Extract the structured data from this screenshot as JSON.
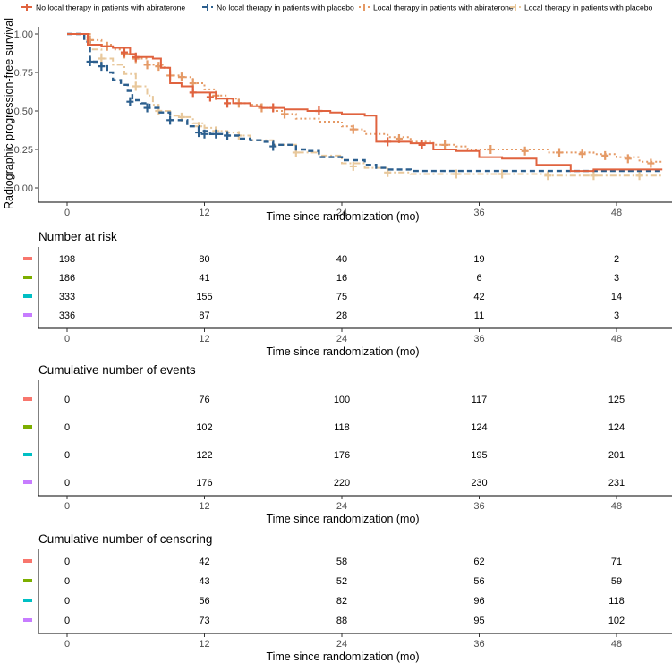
{
  "chart_data": {
    "type": "line",
    "subtype": "kaplan-meier",
    "ylabel": "Radiographic progression-free survival",
    "xlabel": "Time since randomization (mo)",
    "xlim": [
      -4,
      52
    ],
    "ylim": [
      0,
      1
    ],
    "x_ticks": [
      0,
      12,
      24,
      36,
      48
    ],
    "y_ticks": [
      "0.00",
      "0.25",
      "0.50",
      "0.75",
      "1.00"
    ],
    "grid": false,
    "legend_position": "top",
    "series": [
      {
        "name": "No local therapy in patients with abiraterone",
        "color": "#e0633f",
        "dash": "solid",
        "points": [
          [
            0,
            1.0
          ],
          [
            1.3,
            1.0
          ],
          [
            1.8,
            0.93
          ],
          [
            3,
            0.92
          ],
          [
            4,
            0.91
          ],
          [
            5.5,
            0.87
          ],
          [
            6,
            0.85
          ],
          [
            7.5,
            0.84
          ],
          [
            8.2,
            0.78
          ],
          [
            9,
            0.68
          ],
          [
            10,
            0.66
          ],
          [
            11,
            0.62
          ],
          [
            13,
            0.58
          ],
          [
            14.5,
            0.55
          ],
          [
            16,
            0.53
          ],
          [
            17,
            0.52
          ],
          [
            19,
            0.51
          ],
          [
            21,
            0.5
          ],
          [
            23,
            0.49
          ],
          [
            24,
            0.48
          ],
          [
            26,
            0.47
          ],
          [
            27,
            0.3
          ],
          [
            30,
            0.29
          ],
          [
            32,
            0.25
          ],
          [
            34,
            0.24
          ],
          [
            36,
            0.2
          ],
          [
            38,
            0.19
          ],
          [
            41,
            0.15
          ],
          [
            44,
            0.11
          ],
          [
            46,
            0.12
          ],
          [
            52,
            0.12
          ]
        ],
        "censor": [
          [
            5,
            0.88
          ],
          [
            6,
            0.85
          ],
          [
            11,
            0.62
          ],
          [
            12.5,
            0.59
          ],
          [
            14,
            0.55
          ],
          [
            18,
            0.52
          ],
          [
            22,
            0.5
          ],
          [
            28,
            0.3
          ],
          [
            31,
            0.28
          ]
        ]
      },
      {
        "name": "No local therapy in patients with placebo",
        "color": "#2c5f8e",
        "dash": "dashed",
        "points": [
          [
            0,
            1.0
          ],
          [
            1.5,
            0.95
          ],
          [
            2,
            0.82
          ],
          [
            3,
            0.79
          ],
          [
            3.5,
            0.75
          ],
          [
            4,
            0.7
          ],
          [
            4.7,
            0.67
          ],
          [
            5.3,
            0.63
          ],
          [
            5.7,
            0.57
          ],
          [
            6.5,
            0.55
          ],
          [
            7.2,
            0.52
          ],
          [
            8,
            0.49
          ],
          [
            9,
            0.44
          ],
          [
            10.5,
            0.4
          ],
          [
            11.5,
            0.37
          ],
          [
            12.5,
            0.35
          ],
          [
            14,
            0.34
          ],
          [
            15,
            0.32
          ],
          [
            16,
            0.31
          ],
          [
            17,
            0.3
          ],
          [
            18,
            0.28
          ],
          [
            20,
            0.25
          ],
          [
            21,
            0.24
          ],
          [
            22,
            0.2
          ],
          [
            24,
            0.18
          ],
          [
            26,
            0.15
          ],
          [
            27,
            0.13
          ],
          [
            28,
            0.12
          ],
          [
            30,
            0.11
          ],
          [
            36,
            0.11
          ],
          [
            52,
            0.11
          ]
        ],
        "censor": [
          [
            2,
            0.82
          ],
          [
            3,
            0.79
          ],
          [
            5.5,
            0.56
          ],
          [
            7,
            0.52
          ],
          [
            9,
            0.44
          ],
          [
            11.5,
            0.36
          ],
          [
            12,
            0.35
          ],
          [
            13,
            0.35
          ],
          [
            14,
            0.34
          ],
          [
            18,
            0.27
          ]
        ]
      },
      {
        "name": "Local therapy in patients with abiraterone",
        "color": "#e59a66",
        "dash": "dotted",
        "points": [
          [
            0,
            1.0
          ],
          [
            1.5,
            1.0
          ],
          [
            2,
            0.96
          ],
          [
            3,
            0.93
          ],
          [
            4,
            0.9
          ],
          [
            5,
            0.87
          ],
          [
            6,
            0.84
          ],
          [
            7,
            0.8
          ],
          [
            8.5,
            0.78
          ],
          [
            9,
            0.73
          ],
          [
            10,
            0.72
          ],
          [
            11,
            0.68
          ],
          [
            12,
            0.64
          ],
          [
            13,
            0.6
          ],
          [
            14,
            0.58
          ],
          [
            15,
            0.55
          ],
          [
            16,
            0.54
          ],
          [
            17,
            0.52
          ],
          [
            18,
            0.5
          ],
          [
            19,
            0.48
          ],
          [
            20,
            0.45
          ],
          [
            22,
            0.43
          ],
          [
            24,
            0.4
          ],
          [
            25,
            0.38
          ],
          [
            26,
            0.35
          ],
          [
            28,
            0.33
          ],
          [
            30,
            0.3
          ],
          [
            32,
            0.28
          ],
          [
            34,
            0.27
          ],
          [
            35,
            0.25
          ],
          [
            38,
            0.25
          ],
          [
            42,
            0.23
          ],
          [
            46,
            0.22
          ],
          [
            48,
            0.2
          ],
          [
            50,
            0.17
          ],
          [
            52,
            0.16
          ]
        ],
        "censor": [
          [
            2,
            0.96
          ],
          [
            3.5,
            0.92
          ],
          [
            5,
            0.87
          ],
          [
            6,
            0.84
          ],
          [
            7,
            0.8
          ],
          [
            8,
            0.79
          ],
          [
            9,
            0.73
          ],
          [
            10,
            0.72
          ],
          [
            11,
            0.68
          ],
          [
            13,
            0.6
          ],
          [
            15,
            0.55
          ],
          [
            17,
            0.52
          ],
          [
            19,
            0.48
          ],
          [
            25,
            0.38
          ],
          [
            29,
            0.32
          ],
          [
            33,
            0.28
          ],
          [
            37,
            0.25
          ],
          [
            40,
            0.24
          ],
          [
            43,
            0.23
          ],
          [
            45,
            0.22
          ],
          [
            47,
            0.21
          ],
          [
            49,
            0.19
          ],
          [
            51,
            0.16
          ]
        ]
      },
      {
        "name": "Local therapy in patients with placebo",
        "color": "#e8c89c",
        "dash": "dotdash",
        "points": [
          [
            0,
            1.0
          ],
          [
            1.5,
            0.98
          ],
          [
            2,
            0.9
          ],
          [
            3,
            0.84
          ],
          [
            4,
            0.8
          ],
          [
            5,
            0.74
          ],
          [
            6,
            0.66
          ],
          [
            7,
            0.6
          ],
          [
            7.5,
            0.54
          ],
          [
            8,
            0.5
          ],
          [
            9,
            0.47
          ],
          [
            10,
            0.46
          ],
          [
            11,
            0.42
          ],
          [
            12,
            0.39
          ],
          [
            13,
            0.37
          ],
          [
            14,
            0.36
          ],
          [
            15,
            0.34
          ],
          [
            16,
            0.31
          ],
          [
            18,
            0.28
          ],
          [
            20,
            0.23
          ],
          [
            22,
            0.21
          ],
          [
            24,
            0.16
          ],
          [
            26,
            0.13
          ],
          [
            28,
            0.1
          ],
          [
            30,
            0.09
          ],
          [
            36,
            0.09
          ],
          [
            42,
            0.08
          ],
          [
            48,
            0.08
          ],
          [
            52,
            0.08
          ]
        ],
        "censor": [
          [
            3,
            0.84
          ],
          [
            6,
            0.66
          ],
          [
            8,
            0.5
          ],
          [
            10,
            0.46
          ],
          [
            11.5,
            0.4
          ],
          [
            13,
            0.37
          ],
          [
            15,
            0.34
          ],
          [
            20,
            0.23
          ],
          [
            25,
            0.14
          ],
          [
            28,
            0.1
          ],
          [
            34,
            0.09
          ],
          [
            38,
            0.09
          ],
          [
            42,
            0.08
          ],
          [
            46,
            0.08
          ],
          [
            50,
            0.08
          ]
        ]
      }
    ],
    "risk_tables": [
      {
        "title": "Number at risk",
        "rows": [
          {
            "color": "#f8766d",
            "values": [
              "198",
              "80",
              "40",
              "19",
              "2"
            ]
          },
          {
            "color": "#7cae00",
            "values": [
              "186",
              "41",
              "16",
              "6",
              "3"
            ]
          },
          {
            "color": "#00bfc4",
            "values": [
              "333",
              "155",
              "75",
              "42",
              "14"
            ]
          },
          {
            "color": "#c77cff",
            "values": [
              "336",
              "87",
              "28",
              "11",
              "3"
            ]
          }
        ]
      },
      {
        "title": "Cumulative number of events",
        "rows": [
          {
            "color": "#f8766d",
            "values": [
              "0",
              "76",
              "100",
              "117",
              "125"
            ]
          },
          {
            "color": "#7cae00",
            "values": [
              "0",
              "102",
              "118",
              "124",
              "124"
            ]
          },
          {
            "color": "#00bfc4",
            "values": [
              "0",
              "122",
              "176",
              "195",
              "201"
            ]
          },
          {
            "color": "#c77cff",
            "values": [
              "0",
              "176",
              "220",
              "230",
              "231"
            ]
          }
        ]
      },
      {
        "title": "Cumulative number of censoring",
        "rows": [
          {
            "color": "#f8766d",
            "values": [
              "0",
              "42",
              "58",
              "62",
              "71"
            ]
          },
          {
            "color": "#7cae00",
            "values": [
              "0",
              "43",
              "52",
              "56",
              "59"
            ]
          },
          {
            "color": "#00bfc4",
            "values": [
              "0",
              "56",
              "82",
              "96",
              "118"
            ]
          },
          {
            "color": "#c77cff",
            "values": [
              "0",
              "73",
              "88",
              "95",
              "102"
            ]
          }
        ]
      }
    ]
  }
}
